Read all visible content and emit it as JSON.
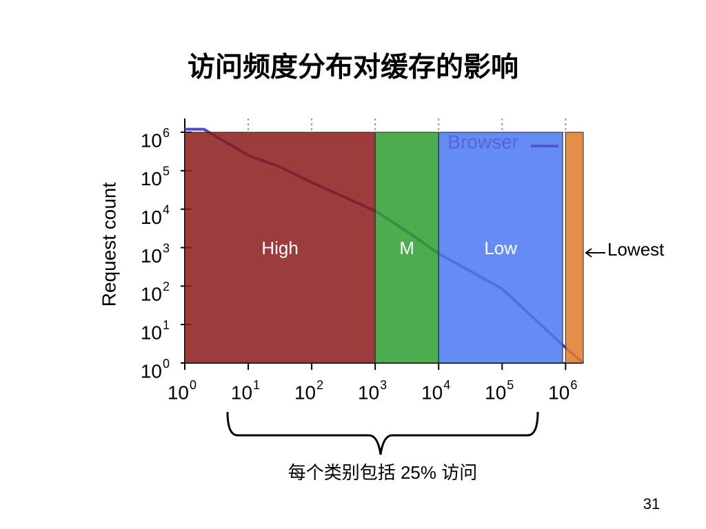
{
  "title": "访问频度分布对缓存的影响",
  "page_number": "31",
  "chart_data": {
    "type": "line",
    "ylabel": "Request count",
    "xscale": "log",
    "yscale": "log",
    "xlim": [
      1,
      1900000
    ],
    "ylim": [
      1,
      1000000
    ],
    "xticks": [
      {
        "value": 1,
        "label": "10",
        "sup": "0"
      },
      {
        "value": 10,
        "label": "10",
        "sup": "1"
      },
      {
        "value": 100,
        "label": "10",
        "sup": "2"
      },
      {
        "value": 1000,
        "label": "10",
        "sup": "3"
      },
      {
        "value": 10000,
        "label": "10",
        "sup": "4"
      },
      {
        "value": 100000,
        "label": "10",
        "sup": "5"
      },
      {
        "value": 1000000,
        "label": "10",
        "sup": "6"
      }
    ],
    "yticks": [
      {
        "value": 1,
        "label": "10",
        "sup": "0"
      },
      {
        "value": 10,
        "label": "10",
        "sup": "1"
      },
      {
        "value": 100,
        "label": "10",
        "sup": "2"
      },
      {
        "value": 1000,
        "label": "10",
        "sup": "3"
      },
      {
        "value": 10000,
        "label": "10",
        "sup": "4"
      },
      {
        "value": 100000,
        "label": "10",
        "sup": "5"
      },
      {
        "value": 1000000,
        "label": "10",
        "sup": "6"
      }
    ],
    "series": [
      {
        "name": "Browser",
        "color": "#4b4bc8",
        "x": [
          1,
          2,
          10,
          30,
          100,
          1000,
          3000,
          10000,
          100000,
          1000000,
          1900000
        ],
        "values": [
          1200000,
          1200000,
          250000,
          130000,
          50000,
          9000,
          2800,
          700,
          85,
          2.5,
          1
        ]
      }
    ],
    "regions": [
      {
        "name": "High",
        "from": 1,
        "to": 1000,
        "color": "#8b1a1a"
      },
      {
        "name": "M",
        "from": 1000,
        "to": 10000,
        "color": "#2e9e2e"
      },
      {
        "name": "Low",
        "from": 10000,
        "to": 900000,
        "color": "#4a78f0"
      },
      {
        "name": "Lowest",
        "from": 1000000,
        "to": 1900000,
        "color": "#e07a2a"
      }
    ],
    "legend": "upper right",
    "annotation": "每个类别包括 25% 访问"
  }
}
